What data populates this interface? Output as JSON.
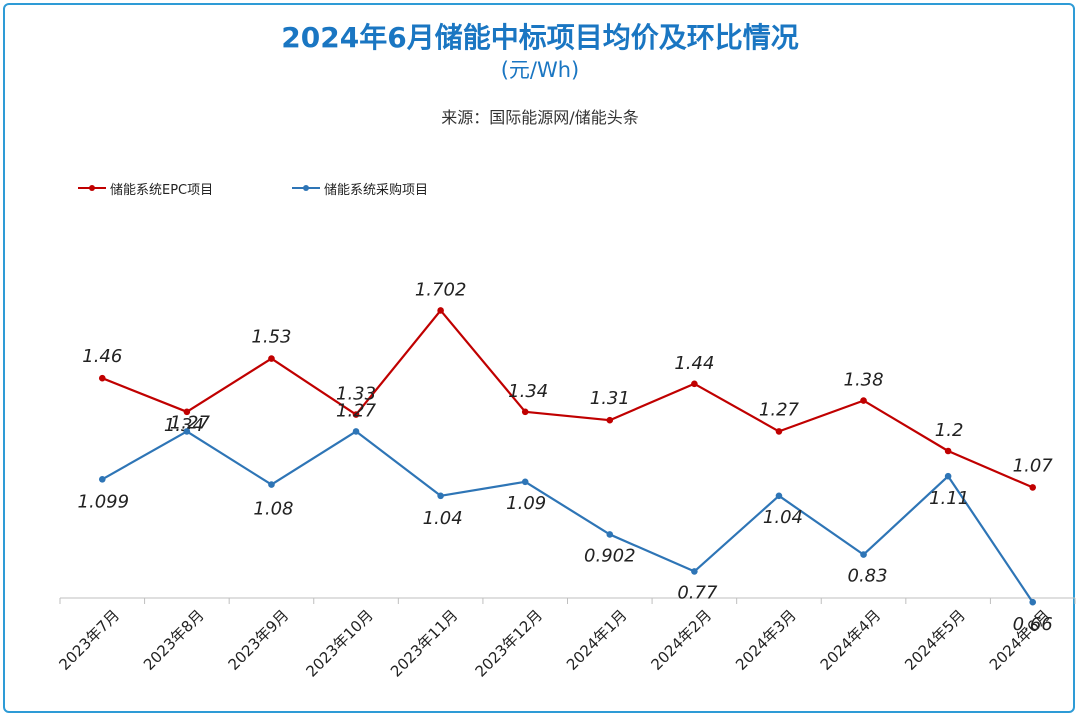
{
  "header": {
    "title": "2024年6月储能中标项目均价及环比情况",
    "unit": "(元/Wh)",
    "source": "来源：国际能源网/储能头条"
  },
  "colors": {
    "frame": "#2e9bd6",
    "title": "#1a76c2",
    "epc": "#c00000",
    "purchase": "#2e75b6"
  },
  "chart_data": {
    "type": "line",
    "title": "2024年6月储能中标项目均价及环比情况",
    "subtitle": "(元/Wh)",
    "categories": [
      "2023年7月",
      "2023年8月",
      "2023年9月",
      "2023年10月",
      "2023年11月",
      "2023年12月",
      "2024年1月",
      "2024年2月",
      "2024年3月",
      "2024年4月",
      "2024年5月",
      "2024年6月"
    ],
    "series": [
      {
        "name": "储能系统EPC项目",
        "color": "#c00000",
        "values": [
          1.46,
          1.34,
          1.53,
          1.33,
          1.702,
          1.34,
          1.31,
          1.44,
          1.27,
          1.38,
          1.2,
          1.07
        ],
        "labels": [
          "1.46",
          "1.34",
          "1.53",
          "1.33",
          "1.702",
          "1.34",
          "1.31",
          "1.44",
          "1.27",
          "1.38",
          "1.2",
          "1.07"
        ]
      },
      {
        "name": "储能系统采购项目",
        "color": "#2e75b6",
        "values": [
          1.099,
          1.27,
          1.08,
          1.27,
          1.04,
          1.09,
          0.902,
          0.77,
          1.04,
          0.83,
          1.11,
          0.66
        ],
        "labels": [
          "1.099",
          "1.27",
          "1.08",
          "1.27",
          "1.04",
          "1.09",
          "0.902",
          "0.77",
          "1.04",
          "0.83",
          "1.11",
          "0.66"
        ]
      }
    ],
    "ylim": [
      0,
      2
    ],
    "legend": "top-left",
    "grid": false
  }
}
